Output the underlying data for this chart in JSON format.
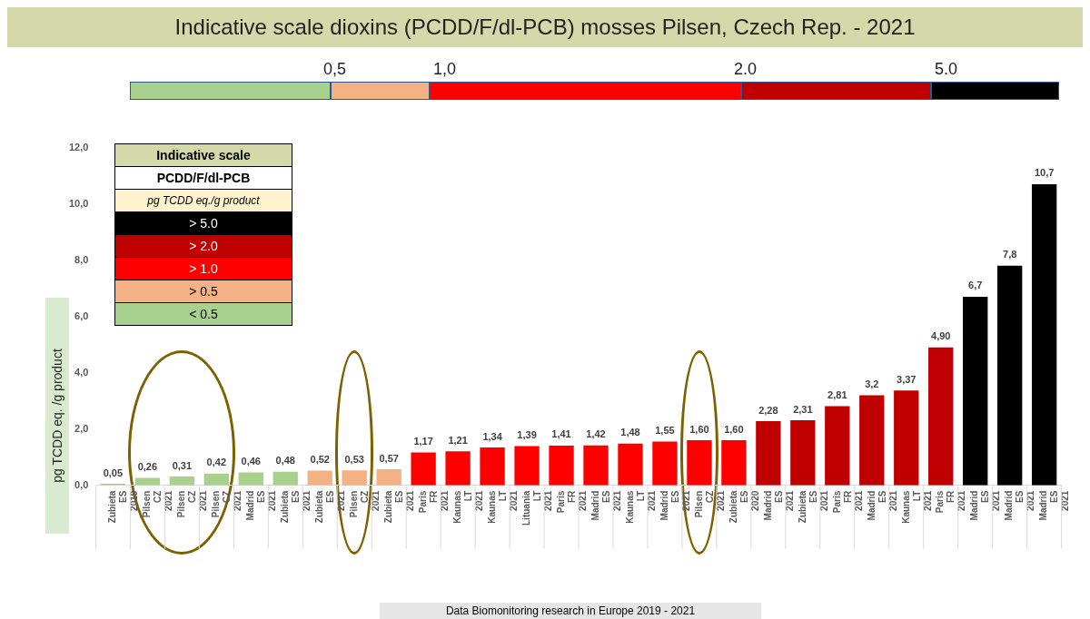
{
  "chart_data": {
    "type": "bar",
    "title": "Indicative scale dioxins (PCDD/F/dl-PCB) mosses Pilsen, Czech Rep.  -  2021",
    "ylabel": "pg TCDD eq. /g product",
    "grid": false,
    "categories": [
      "Zubieta\nES\n2019",
      "Pilsen\nCZ\n2021",
      "Pilsen\nCZ\n2021",
      "Pilsen\nCZ\n2021",
      "Madrid\nES\n2021",
      "Zubieta\nES\n2021",
      "Zubieta\nES\n2021",
      "Pilsen\nCZ\n2021",
      "Zubieta\nES\n2021",
      "Paris\nFR\n2021",
      "Kaunas\nLT\n2021",
      "Kaunas\nLT\n2021",
      "Lituania\nLT\n2021",
      "Paris\nFR\n2021",
      "Madrid\nES\n2021",
      "Kaunas\nLT\n2021",
      "Madrid\nES\n2021",
      "Pilsen\nCZ\n2021",
      "Zubieta\nES\n2020",
      "Madrid\nES\n2021",
      "Zubieta\nES\n2021",
      "Paris\nFR\n2021",
      "Madrid\nES\n2021",
      "Kaunas\nLT\n2021",
      "Paris\nFR\n2021",
      "Madrid\nES\n2021",
      "Madrid\nES\n2021",
      "Madrid\nES\n2021"
    ],
    "values": [
      0.05,
      0.26,
      0.31,
      0.42,
      0.46,
      0.48,
      0.52,
      0.53,
      0.57,
      1.17,
      1.21,
      1.34,
      1.39,
      1.41,
      1.42,
      1.48,
      1.55,
      1.6,
      1.6,
      2.28,
      2.31,
      2.81,
      3.2,
      3.37,
      4.9,
      6.7,
      7.8,
      10.7
    ],
    "value_labels": [
      "0,05",
      "0,26",
      "0,31",
      "0,42",
      "0,46",
      "0,48",
      "0,52",
      "0,53",
      "0,57",
      "1,17",
      "1,21",
      "1,34",
      "1,39",
      "1,41",
      "1,42",
      "1,48",
      "1,55",
      "1,60",
      "1,60",
      "2,28",
      "2,31",
      "2,81",
      "3,2",
      "3,37",
      "4,90",
      "6,7",
      "7,8",
      "10,7"
    ],
    "colors": [
      "#a9d18e",
      "#a9d18e",
      "#a9d18e",
      "#a9d18e",
      "#a9d18e",
      "#a9d18e",
      "#f4b183",
      "#f4b183",
      "#f4b183",
      "#ff0000",
      "#ff0000",
      "#ff0000",
      "#ff0000",
      "#ff0000",
      "#ff0000",
      "#ff0000",
      "#ff0000",
      "#ff0000",
      "#ff0000",
      "#c00000",
      "#c00000",
      "#c00000",
      "#c00000",
      "#c00000",
      "#c00000",
      "#000000",
      "#000000",
      "#000000"
    ],
    "ylim": [
      0,
      12
    ],
    "yticks": [
      {
        "value": 0,
        "label": "0,0"
      },
      {
        "value": 2,
        "label": "2,0"
      },
      {
        "value": 4,
        "label": "4,0"
      },
      {
        "value": 6,
        "label": "6,0"
      },
      {
        "value": 8,
        "label": "8,0"
      },
      {
        "value": 10,
        "label": "10,0"
      },
      {
        "value": 12,
        "label": "12,0"
      }
    ],
    "annotations": [
      "0,5",
      "1,0",
      "2.0",
      "5.0",
      "Data Biomonitoring research in Europe  2019 - 2021",
      "Indicative scale",
      "PCDD/F/dl-PCB",
      "pg TCDD eq./g product",
      "> 5.0",
      "> 2.0",
      "> 1.0",
      "> 0.5",
      "< 0.5"
    ]
  }
}
